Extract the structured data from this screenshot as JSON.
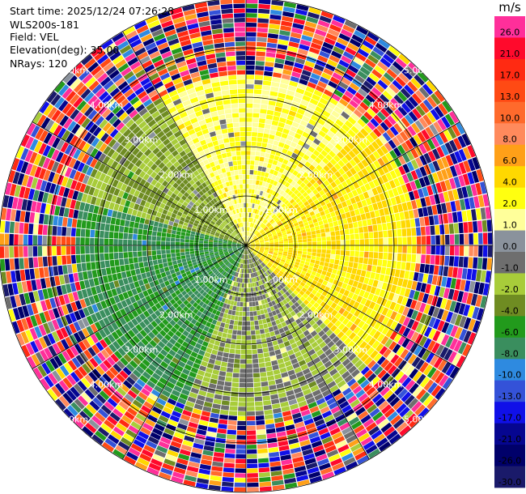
{
  "info": {
    "start_time": "Start time: 2025/12/24 07:26:28",
    "site": "WLS200s-181",
    "field": "Field: VEL",
    "elevation": "Elevation(deg): 35.00",
    "nrays": "NRays: 120"
  },
  "colorbar": {
    "unit": "m/s",
    "entries": [
      {
        "label": "26.0",
        "color": "#ff2f9a"
      },
      {
        "label": "21.0",
        "color": "#ff0a2c"
      },
      {
        "label": "17.0",
        "color": "#ff2a12"
      },
      {
        "label": "13.0",
        "color": "#ff4a14"
      },
      {
        "label": "10.0",
        "color": "#ff6a2c"
      },
      {
        "label": "8.0",
        "color": "#ff8a5c"
      },
      {
        "label": "6.0",
        "color": "#ffa018"
      },
      {
        "label": "4.0",
        "color": "#ffd800"
      },
      {
        "label": "2.0",
        "color": "#ffff10"
      },
      {
        "label": "1.0",
        "color": "#ffff9a"
      },
      {
        "label": "0.0",
        "color": "#8a929c"
      },
      {
        "label": "-1.0",
        "color": "#6e6e6e"
      },
      {
        "label": "-2.0",
        "color": "#a8cc3a"
      },
      {
        "label": "-4.0",
        "color": "#6f8c22"
      },
      {
        "label": "-6.0",
        "color": "#229a1c"
      },
      {
        "label": "-8.0",
        "color": "#3a8e5e"
      },
      {
        "label": "-10.0",
        "color": "#2e8ae0"
      },
      {
        "label": "-13.0",
        "color": "#3452d8"
      },
      {
        "label": "-17.0",
        "color": "#1010e8"
      },
      {
        "label": "-21.0",
        "color": "#060690"
      },
      {
        "label": "-26.0",
        "color": "#00006a"
      },
      {
        "label": "-30.0",
        "color": "#1a1a6a"
      }
    ]
  },
  "chart_data": {
    "type": "heatmap",
    "projection": "polar",
    "field": "VEL",
    "unit": "m/s",
    "max_range_km": 5.0,
    "range_ring_labels": [
      "1.00km",
      "2.00km",
      "3.00km",
      "4.00km",
      "5.00km"
    ],
    "range_rings_km": [
      1,
      2,
      3,
      4,
      5
    ],
    "nrays": 120,
    "spokes_deg": [
      0,
      30,
      60,
      90,
      120,
      150,
      180,
      210,
      240,
      270,
      300,
      330
    ],
    "approx_velocity_by_sector": [
      {
        "azimuth_from": 330,
        "azimuth_to": 45,
        "velocity_ms": 2.0
      },
      {
        "azimuth_from": 45,
        "azimuth_to": 135,
        "velocity_ms": 4.0
      },
      {
        "azimuth_from": 135,
        "azimuth_to": 200,
        "velocity_ms": -1.0
      },
      {
        "azimuth_from": 200,
        "azimuth_to": 285,
        "velocity_ms": -6.0
      },
      {
        "azimuth_from": 285,
        "azimuth_to": 330,
        "velocity_ms": -2.0
      }
    ],
    "noise_beyond_km": 3.4
  }
}
